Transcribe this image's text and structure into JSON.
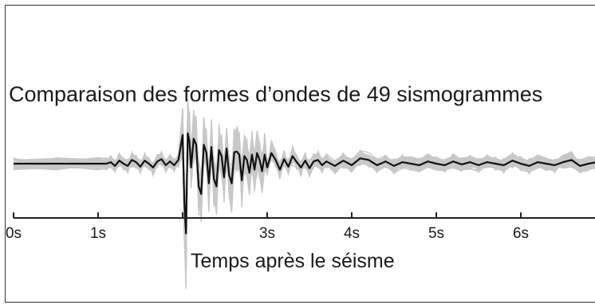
{
  "chart_data": {
    "type": "line",
    "title": "Comparaison des formes d’ondes de 49 sismogrammes",
    "xlabel": "Temps après le séisme",
    "ylabel": "",
    "x_ticks": [
      {
        "value": 0,
        "label": "0s"
      },
      {
        "value": 1,
        "label": "1s"
      },
      {
        "value": 2,
        "label": ""
      },
      {
        "value": 3,
        "label": "3s"
      },
      {
        "value": 4,
        "label": "4s"
      },
      {
        "value": 5,
        "label": "5s"
      },
      {
        "value": 6,
        "label": "6s"
      },
      {
        "value": 7,
        "label": ""
      }
    ],
    "xlim": [
      0,
      7
    ],
    "ylim": [
      -1,
      1
    ],
    "grid": false,
    "legend": "none",
    "background_traces": 49,
    "colors": {
      "traces": "#c8c8c8",
      "mean": "#111111",
      "axis": "#222222"
    },
    "series": [
      {
        "x": [
          0.0,
          0.5,
          1.0,
          1.1,
          1.15,
          1.2,
          1.25,
          1.3,
          1.35,
          1.4,
          1.45,
          1.5,
          1.55,
          1.6,
          1.65,
          1.7,
          1.75,
          1.8,
          1.85,
          1.9,
          1.95,
          2.0,
          2.02,
          2.04,
          2.06,
          2.08,
          2.1,
          2.13,
          2.16,
          2.19,
          2.22,
          2.25,
          2.28,
          2.31,
          2.34,
          2.37,
          2.4,
          2.43,
          2.46,
          2.49,
          2.52,
          2.55,
          2.58,
          2.61,
          2.64,
          2.67,
          2.7,
          2.73,
          2.76,
          2.79,
          2.82,
          2.85,
          2.88,
          2.91,
          2.94,
          2.97,
          3.0,
          3.05,
          3.1,
          3.15,
          3.2,
          3.25,
          3.3,
          3.35,
          3.4,
          3.45,
          3.5,
          3.55,
          3.6,
          3.65,
          3.7,
          3.8,
          3.9,
          4.0,
          4.1,
          4.2,
          4.3,
          4.4,
          4.5,
          4.6,
          4.7,
          4.8,
          4.9,
          5.0,
          5.1,
          5.2,
          5.3,
          5.4,
          5.5,
          5.6,
          5.7,
          5.8,
          5.9,
          6.0,
          6.1,
          6.2,
          6.3,
          6.4,
          6.5,
          6.6,
          6.7,
          6.8,
          6.9,
          7.0
        ],
        "y": [
          0.0,
          0.0,
          0.0,
          0.0,
          0.02,
          -0.03,
          0.04,
          0.0,
          -0.03,
          0.05,
          0.02,
          -0.04,
          0.04,
          0.0,
          -0.05,
          0.03,
          0.06,
          -0.02,
          0.03,
          -0.02,
          0.05,
          0.38,
          -0.5,
          -0.92,
          0.4,
          0.3,
          -0.05,
          0.33,
          0.25,
          -0.3,
          -0.4,
          0.25,
          0.15,
          -0.26,
          0.22,
          -0.2,
          -0.3,
          0.18,
          0.1,
          -0.18,
          0.2,
          -0.15,
          -0.26,
          0.15,
          0.16,
          0.12,
          -0.22,
          0.1,
          0.05,
          -0.12,
          0.12,
          -0.08,
          0.14,
          0.05,
          -0.1,
          0.12,
          -0.05,
          0.14,
          0.05,
          -0.08,
          0.06,
          -0.04,
          0.1,
          0.02,
          -0.05,
          0.04,
          -0.06,
          0.03,
          0.05,
          -0.02,
          0.03,
          -0.03,
          0.04,
          -0.02,
          0.07,
          0.05,
          -0.02,
          0.03,
          -0.03,
          0.02,
          0.0,
          -0.02,
          0.03,
          0.0,
          -0.02,
          0.03,
          -0.01,
          0.02,
          -0.02,
          0.02,
          0.0,
          -0.02,
          0.04,
          0.0,
          -0.03,
          0.02,
          0.0,
          -0.02,
          0.02,
          0.05,
          -0.03,
          0.0,
          0.02,
          0.0
        ]
      }
    ]
  }
}
